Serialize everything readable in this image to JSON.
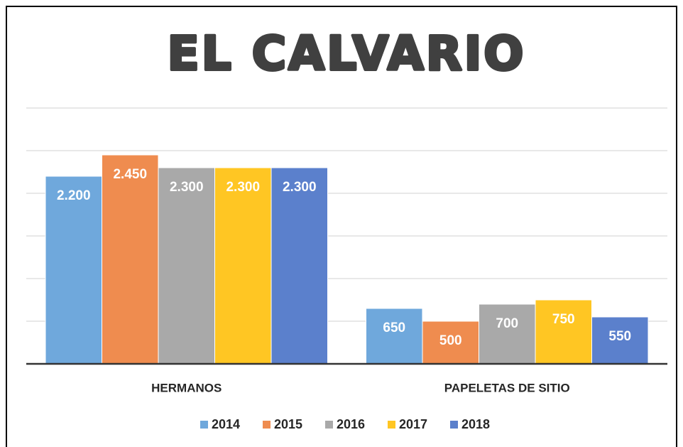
{
  "chart_data": {
    "type": "bar",
    "title": "EL CALVARIO",
    "categories": [
      "HERMANOS",
      "PAPELETAS DE SITIO"
    ],
    "series": [
      {
        "name": "2014",
        "color": "#6fa8dc",
        "values": [
          2200,
          650
        ],
        "value_labels": [
          "2.200",
          "650"
        ]
      },
      {
        "name": "2015",
        "color": "#ef8c4f",
        "values": [
          2450,
          500
        ],
        "value_labels": [
          "2.450",
          "500"
        ]
      },
      {
        "name": "2016",
        "color": "#a9a9a9",
        "values": [
          2300,
          700
        ],
        "value_labels": [
          "2.300",
          "700"
        ]
      },
      {
        "name": "2017",
        "color": "#ffc623",
        "values": [
          2300,
          750
        ],
        "value_labels": [
          "2.300",
          "750"
        ]
      },
      {
        "name": "2018",
        "color": "#5b80cc",
        "values": [
          2300,
          550
        ],
        "value_labels": [
          "2.300",
          "550"
        ]
      }
    ],
    "ylim": [
      0,
      3000
    ],
    "yticks": [
      0,
      500,
      1000,
      1500,
      2000,
      2500,
      3000
    ],
    "grid": true,
    "legend": "bottom"
  }
}
